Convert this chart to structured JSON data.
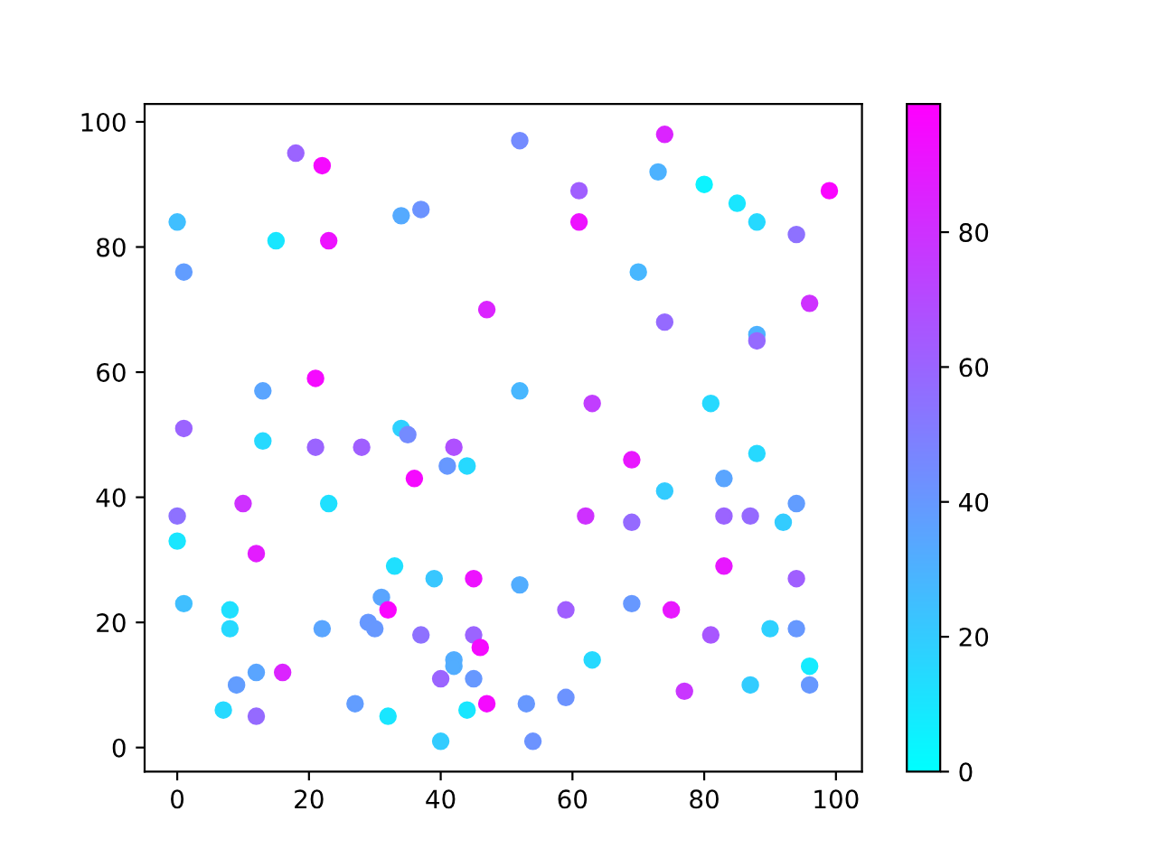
{
  "chart_data": {
    "type": "scatter",
    "clim": [
      0,
      99
    ],
    "cticks": [
      0,
      20,
      40,
      60,
      80
    ],
    "xlim": [
      -4.95,
      103.95
    ],
    "ylim": [
      -3.85,
      102.85
    ],
    "xticks": [
      0,
      20,
      40,
      60,
      80,
      100
    ],
    "yticks": [
      0,
      20,
      40,
      60,
      80,
      100
    ],
    "grid": false,
    "marker": "circle",
    "x": [
      18,
      22,
      0,
      15,
      23,
      1,
      34,
      37,
      52,
      61,
      74,
      73,
      80,
      85,
      88,
      99,
      94,
      61,
      70,
      47,
      96,
      74,
      88,
      88,
      21,
      52,
      13,
      63,
      81,
      1,
      34,
      35,
      13,
      21,
      28,
      42,
      88,
      69,
      41,
      44,
      36,
      83,
      74,
      10,
      23,
      94,
      0,
      62,
      83,
      87,
      69,
      92,
      12,
      83,
      33,
      94,
      45,
      39,
      52,
      31,
      32,
      0,
      1,
      8,
      8,
      22,
      29,
      30,
      37,
      45,
      46,
      59,
      69,
      75,
      63,
      42,
      42,
      12,
      16,
      9,
      40,
      45,
      81,
      90,
      94,
      96,
      96,
      87,
      77,
      12,
      7,
      27,
      32,
      44,
      47,
      53,
      59,
      40,
      54
    ],
    "values": [
      95,
      93,
      84,
      81,
      81,
      76,
      85,
      86,
      97,
      89,
      98,
      92,
      90,
      87,
      84,
      89,
      82,
      84,
      76,
      70,
      71,
      68,
      66,
      65,
      59,
      57,
      57,
      55,
      55,
      51,
      51,
      50,
      49,
      48,
      48,
      48,
      47,
      46,
      45,
      45,
      43,
      43,
      41,
      39,
      39,
      39,
      37,
      37,
      37,
      37,
      36,
      36,
      31,
      29,
      29,
      27,
      27,
      27,
      26,
      24,
      22,
      33,
      23,
      22,
      19,
      19,
      20,
      19,
      18,
      18,
      16,
      22,
      23,
      22,
      14,
      14,
      13,
      12,
      12,
      10,
      11,
      11,
      18,
      19,
      19,
      13,
      10,
      10,
      9,
      5,
      6,
      7,
      5,
      6,
      7,
      7,
      8,
      1,
      1
    ],
    "cvalues": [
      60,
      95,
      25,
      10,
      92,
      38,
      33,
      42,
      45,
      62,
      85,
      30,
      5,
      10,
      15,
      97,
      55,
      92,
      28,
      85,
      80,
      58,
      30,
      58,
      95,
      28,
      35,
      75,
      15,
      60,
      18,
      45,
      15,
      60,
      62,
      68,
      15,
      90,
      40,
      15,
      95,
      35,
      20,
      80,
      12,
      38,
      55,
      80,
      60,
      58,
      58,
      20,
      88,
      90,
      12,
      62,
      92,
      22,
      32,
      35,
      97,
      10,
      25,
      12,
      15,
      35,
      40,
      40,
      55,
      60,
      95,
      62,
      40,
      90,
      15,
      32,
      32,
      35,
      85,
      38,
      60,
      40,
      65,
      18,
      40,
      8,
      40,
      20,
      78,
      58,
      15,
      38,
      10,
      10,
      95,
      40,
      42,
      20,
      42
    ]
  }
}
